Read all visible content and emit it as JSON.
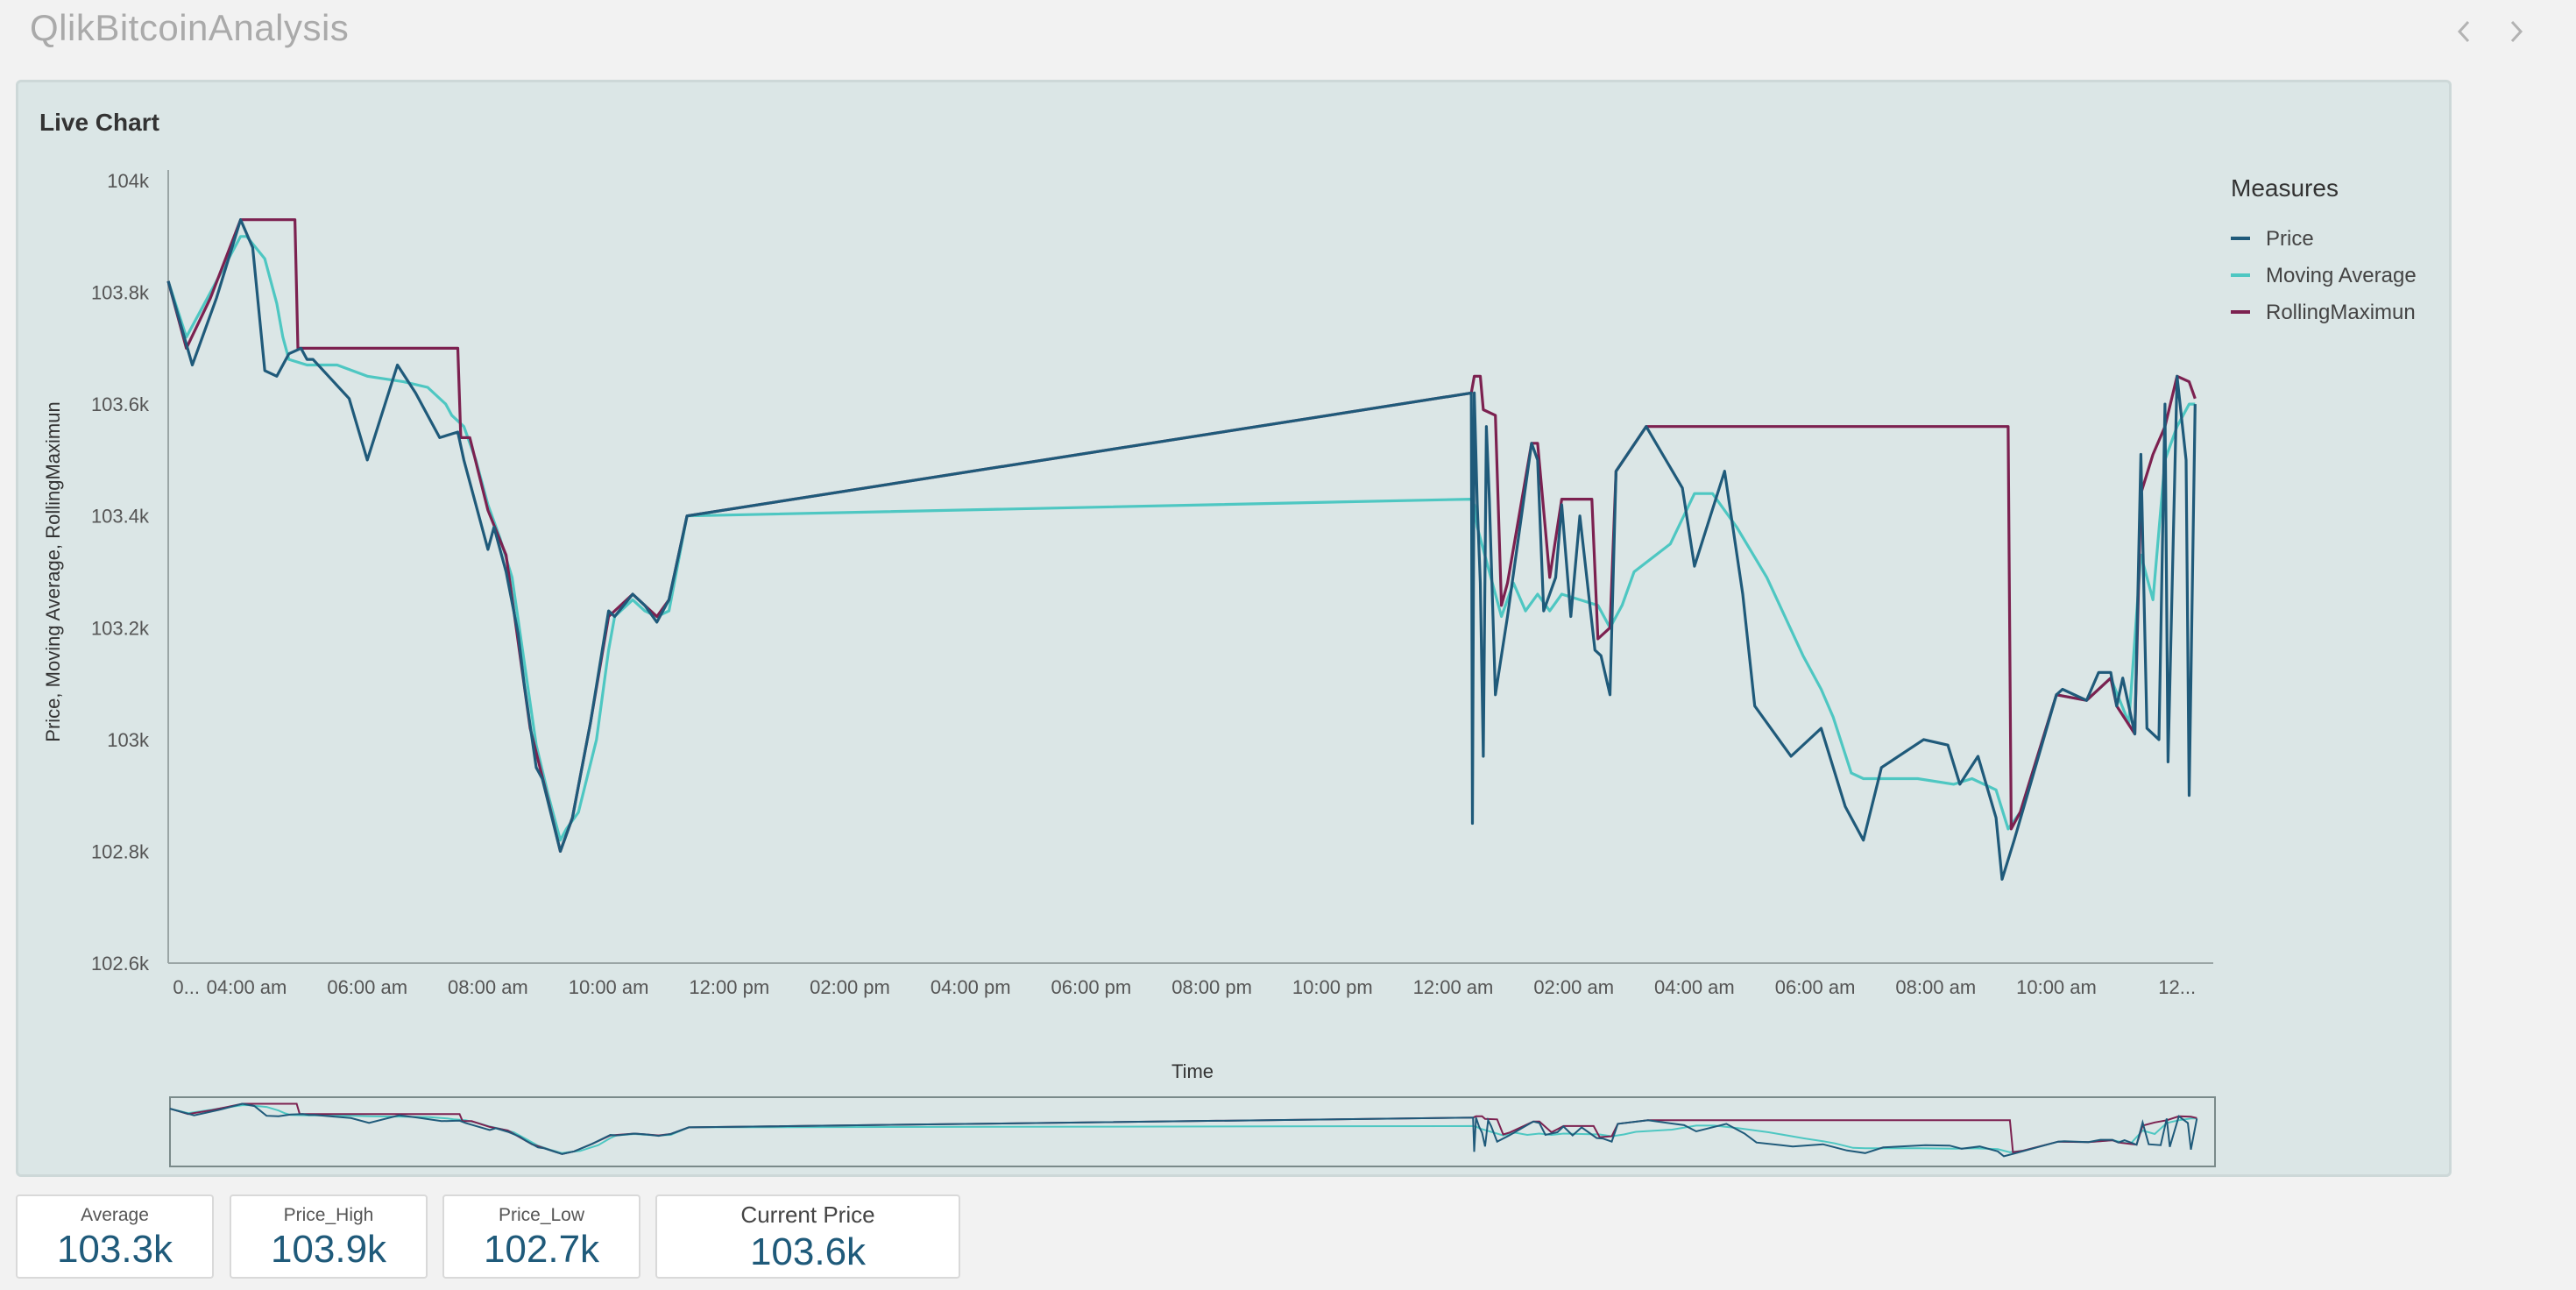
{
  "app": {
    "title": "QlikBitcoinAnalysis"
  },
  "nav": {
    "prev_icon": "chevron-left-icon",
    "next_icon": "chevron-right-icon"
  },
  "panel": {
    "title": "Live Chart"
  },
  "colors": {
    "price": "#1f5a7a",
    "moving_average": "#4ec7c2",
    "rolling_max": "#7c2150",
    "background": "#dbe6e6"
  },
  "chart_data": {
    "type": "line",
    "xlabel": "Time",
    "ylabel": "Price, Moving Average, RollingMaximun",
    "ylim": [
      102600,
      104000
    ],
    "y_ticks": [
      {
        "value": 104000,
        "label": "104k"
      },
      {
        "value": 103800,
        "label": "103.8k"
      },
      {
        "value": 103600,
        "label": "103.6k"
      },
      {
        "value": 103400,
        "label": "103.4k"
      },
      {
        "value": 103200,
        "label": "103.2k"
      },
      {
        "value": 103000,
        "label": "103k"
      },
      {
        "value": 102800,
        "label": "102.8k"
      },
      {
        "value": 102600,
        "label": "102.6k"
      }
    ],
    "x_domain_hours": [
      2.7,
      36.6
    ],
    "x_ticks": [
      {
        "hour": 3.0,
        "label": "0..."
      },
      {
        "hour": 4,
        "label": "04:00 am"
      },
      {
        "hour": 6,
        "label": "06:00 am"
      },
      {
        "hour": 8,
        "label": "08:00 am"
      },
      {
        "hour": 10,
        "label": "10:00 am"
      },
      {
        "hour": 12,
        "label": "12:00 pm"
      },
      {
        "hour": 14,
        "label": "02:00 pm"
      },
      {
        "hour": 16,
        "label": "04:00 pm"
      },
      {
        "hour": 18,
        "label": "06:00 pm"
      },
      {
        "hour": 20,
        "label": "08:00 pm"
      },
      {
        "hour": 22,
        "label": "10:00 pm"
      },
      {
        "hour": 24,
        "label": "12:00 am"
      },
      {
        "hour": 26,
        "label": "02:00 am"
      },
      {
        "hour": 28,
        "label": "04:00 am"
      },
      {
        "hour": 30,
        "label": "06:00 am"
      },
      {
        "hour": 32,
        "label": "08:00 am"
      },
      {
        "hour": 34,
        "label": "10:00 am"
      },
      {
        "hour": 36,
        "label": "12..."
      }
    ],
    "legend": {
      "title": "Measures",
      "position": "right"
    },
    "series": [
      {
        "name": "Price",
        "color": "#1f5a7a",
        "points": [
          [
            2.7,
            103820
          ],
          [
            3.1,
            103670
          ],
          [
            3.5,
            103790
          ],
          [
            3.9,
            103930
          ],
          [
            4.1,
            103880
          ],
          [
            4.3,
            103660
          ],
          [
            4.5,
            103650
          ],
          [
            4.7,
            103690
          ],
          [
            4.9,
            103700
          ],
          [
            5.0,
            103680
          ],
          [
            5.1,
            103680
          ],
          [
            5.7,
            103610
          ],
          [
            6.0,
            103500
          ],
          [
            6.5,
            103670
          ],
          [
            6.8,
            103620
          ],
          [
            7.2,
            103540
          ],
          [
            7.5,
            103550
          ],
          [
            7.6,
            103500
          ],
          [
            8.0,
            103340
          ],
          [
            8.1,
            103380
          ],
          [
            8.3,
            103300
          ],
          [
            8.5,
            103190
          ],
          [
            8.6,
            103100
          ],
          [
            8.8,
            102950
          ],
          [
            8.9,
            102930
          ],
          [
            9.2,
            102800
          ],
          [
            9.4,
            102860
          ],
          [
            9.7,
            103030
          ],
          [
            10.0,
            103230
          ],
          [
            10.1,
            103220
          ],
          [
            10.4,
            103260
          ],
          [
            10.6,
            103240
          ],
          [
            10.8,
            103210
          ],
          [
            11.0,
            103250
          ],
          [
            11.3,
            103400
          ],
          [
            24.3,
            103620
          ],
          [
            24.32,
            102850
          ],
          [
            24.35,
            103620
          ],
          [
            24.4,
            103420
          ],
          [
            24.45,
            103280
          ],
          [
            24.5,
            102970
          ],
          [
            24.55,
            103560
          ],
          [
            24.6,
            103430
          ],
          [
            24.7,
            103080
          ],
          [
            24.9,
            103220
          ],
          [
            25.3,
            103530
          ],
          [
            25.4,
            103500
          ],
          [
            25.5,
            103230
          ],
          [
            25.7,
            103290
          ],
          [
            25.8,
            103420
          ],
          [
            25.95,
            103220
          ],
          [
            26.1,
            103400
          ],
          [
            26.35,
            103160
          ],
          [
            26.45,
            103150
          ],
          [
            26.6,
            103080
          ],
          [
            26.7,
            103480
          ],
          [
            27.2,
            103560
          ],
          [
            27.8,
            103450
          ],
          [
            28.0,
            103310
          ],
          [
            28.5,
            103480
          ],
          [
            28.8,
            103260
          ],
          [
            29.0,
            103060
          ],
          [
            29.6,
            102970
          ],
          [
            30.1,
            103020
          ],
          [
            30.5,
            102880
          ],
          [
            30.8,
            102820
          ],
          [
            31.1,
            102950
          ],
          [
            31.8,
            103000
          ],
          [
            32.2,
            102990
          ],
          [
            32.4,
            102920
          ],
          [
            32.7,
            102970
          ],
          [
            33.0,
            102860
          ],
          [
            33.1,
            102750
          ],
          [
            33.3,
            102820
          ],
          [
            34.0,
            103080
          ],
          [
            34.1,
            103090
          ],
          [
            34.5,
            103070
          ],
          [
            34.7,
            103120
          ],
          [
            34.9,
            103120
          ],
          [
            35.0,
            103060
          ],
          [
            35.1,
            103110
          ],
          [
            35.3,
            103010
          ],
          [
            35.4,
            103510
          ],
          [
            35.5,
            103020
          ],
          [
            35.7,
            103000
          ],
          [
            35.8,
            103600
          ],
          [
            35.85,
            102960
          ],
          [
            36.0,
            103650
          ],
          [
            36.15,
            103500
          ],
          [
            36.2,
            102900
          ],
          [
            36.3,
            103600
          ]
        ]
      },
      {
        "name": "Moving Average",
        "color": "#4ec7c2",
        "points": [
          [
            2.7,
            103820
          ],
          [
            3.0,
            103720
          ],
          [
            3.4,
            103800
          ],
          [
            3.9,
            103900
          ],
          [
            4.0,
            103900
          ],
          [
            4.3,
            103860
          ],
          [
            4.5,
            103780
          ],
          [
            4.6,
            103720
          ],
          [
            4.7,
            103680
          ],
          [
            5.0,
            103670
          ],
          [
            5.5,
            103670
          ],
          [
            6.0,
            103650
          ],
          [
            6.6,
            103640
          ],
          [
            7.0,
            103630
          ],
          [
            7.3,
            103600
          ],
          [
            7.4,
            103580
          ],
          [
            7.6,
            103560
          ],
          [
            7.8,
            103500
          ],
          [
            8.0,
            103420
          ],
          [
            8.2,
            103360
          ],
          [
            8.4,
            103290
          ],
          [
            8.6,
            103140
          ],
          [
            8.8,
            102990
          ],
          [
            9.0,
            102900
          ],
          [
            9.2,
            102820
          ],
          [
            9.3,
            102840
          ],
          [
            9.5,
            102870
          ],
          [
            9.8,
            103000
          ],
          [
            10.0,
            103160
          ],
          [
            10.1,
            103220
          ],
          [
            10.4,
            103250
          ],
          [
            10.6,
            103230
          ],
          [
            10.8,
            103220
          ],
          [
            11.0,
            103230
          ],
          [
            11.3,
            103400
          ],
          [
            24.3,
            103430
          ],
          [
            24.35,
            103420
          ],
          [
            24.4,
            103380
          ],
          [
            24.6,
            103300
          ],
          [
            24.8,
            103220
          ],
          [
            25.0,
            103280
          ],
          [
            25.2,
            103230
          ],
          [
            25.4,
            103260
          ],
          [
            25.6,
            103230
          ],
          [
            25.8,
            103260
          ],
          [
            26.1,
            103250
          ],
          [
            26.4,
            103240
          ],
          [
            26.6,
            103200
          ],
          [
            26.8,
            103240
          ],
          [
            27.0,
            103300
          ],
          [
            27.6,
            103350
          ],
          [
            28.0,
            103440
          ],
          [
            28.3,
            103440
          ],
          [
            28.7,
            103380
          ],
          [
            29.2,
            103290
          ],
          [
            29.8,
            103150
          ],
          [
            30.1,
            103090
          ],
          [
            30.3,
            103040
          ],
          [
            30.6,
            102940
          ],
          [
            30.8,
            102930
          ],
          [
            31.1,
            102930
          ],
          [
            31.7,
            102930
          ],
          [
            32.3,
            102920
          ],
          [
            32.6,
            102930
          ],
          [
            33.0,
            102910
          ],
          [
            33.2,
            102840
          ],
          [
            33.4,
            102870
          ],
          [
            34.0,
            103080
          ],
          [
            34.5,
            103070
          ],
          [
            34.9,
            103110
          ],
          [
            35.2,
            103030
          ],
          [
            35.4,
            103330
          ],
          [
            35.6,
            103250
          ],
          [
            35.8,
            103500
          ],
          [
            36.0,
            103560
          ],
          [
            36.2,
            103600
          ],
          [
            36.3,
            103600
          ]
        ]
      },
      {
        "name": "RollingMaximun",
        "color": "#7c2150",
        "points": [
          [
            2.7,
            103820
          ],
          [
            3.0,
            103700
          ],
          [
            3.4,
            103790
          ],
          [
            3.9,
            103930
          ],
          [
            4.8,
            103930
          ],
          [
            4.85,
            103700
          ],
          [
            7.5,
            103700
          ],
          [
            7.55,
            103540
          ],
          [
            7.7,
            103540
          ],
          [
            8.0,
            103410
          ],
          [
            8.3,
            103330
          ],
          [
            8.7,
            103020
          ],
          [
            9.0,
            102890
          ],
          [
            9.2,
            102800
          ],
          [
            9.4,
            102860
          ],
          [
            9.7,
            103030
          ],
          [
            10.0,
            103220
          ],
          [
            10.4,
            103260
          ],
          [
            10.6,
            103240
          ],
          [
            10.8,
            103220
          ],
          [
            11.0,
            103250
          ],
          [
            11.3,
            103400
          ],
          [
            24.3,
            103620
          ],
          [
            24.35,
            103650
          ],
          [
            24.45,
            103650
          ],
          [
            24.5,
            103590
          ],
          [
            24.7,
            103580
          ],
          [
            24.8,
            103240
          ],
          [
            24.9,
            103280
          ],
          [
            25.3,
            103530
          ],
          [
            25.4,
            103530
          ],
          [
            25.6,
            103290
          ],
          [
            25.8,
            103430
          ],
          [
            26.3,
            103430
          ],
          [
            26.4,
            103180
          ],
          [
            26.6,
            103200
          ],
          [
            26.7,
            103480
          ],
          [
            27.2,
            103560
          ],
          [
            33.2,
            103560
          ],
          [
            33.25,
            102840
          ],
          [
            33.4,
            102870
          ],
          [
            34.0,
            103080
          ],
          [
            34.5,
            103070
          ],
          [
            34.9,
            103110
          ],
          [
            35.0,
            103060
          ],
          [
            35.3,
            103010
          ],
          [
            35.4,
            103440
          ],
          [
            35.6,
            103510
          ],
          [
            35.8,
            103560
          ],
          [
            36.0,
            103650
          ],
          [
            36.2,
            103640
          ],
          [
            36.3,
            103610
          ]
        ]
      }
    ]
  },
  "kpis": [
    {
      "label": "Average",
      "value": "103.3k"
    },
    {
      "label": "Price_High",
      "value": "103.9k"
    },
    {
      "label": "Price_Low",
      "value": "102.7k"
    },
    {
      "label": "Current Price",
      "value": "103.6k"
    }
  ]
}
